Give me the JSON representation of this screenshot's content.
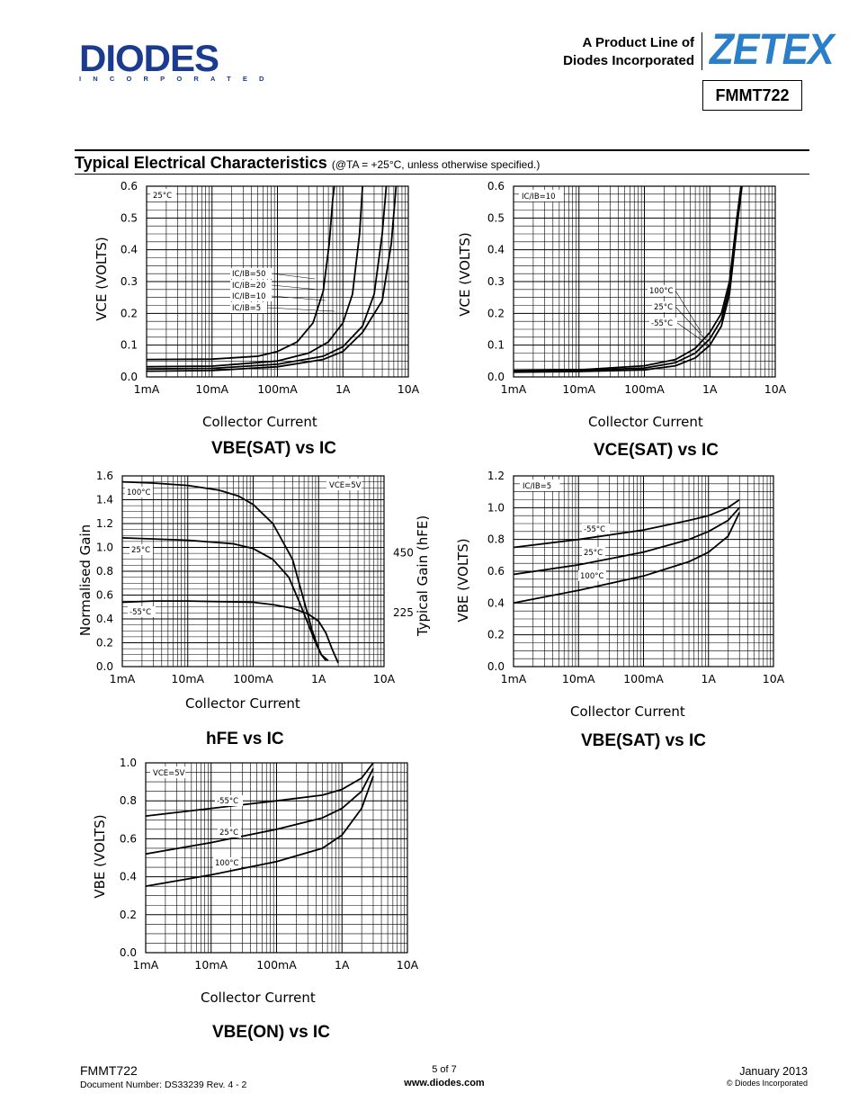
{
  "header": {
    "logo_text": "DIODES",
    "logo_subtext": "INCORPORATED",
    "product_line_1": "A Product Line of",
    "product_line_2": "Diodes Incorporated",
    "brand": "ZETEX",
    "part_number": "FMMT722",
    "brand_color": "#2b7ec8",
    "logo_color": "#1a3b8f"
  },
  "section": {
    "title": "Typical Electrical Characteristics",
    "condition": "(@TA = +25°C, unless otherwise specified.)"
  },
  "chart_data": [
    {
      "type": "line",
      "title": "VBE(SAT) vs IC",
      "xlabel": "Collector Current",
      "ylabel": "VCE (VOLTS)",
      "x_scale": "log",
      "xlim": [
        0.001,
        10
      ],
      "x_ticks": [
        "1mA",
        "10mA",
        "100mA",
        "1A",
        "10A"
      ],
      "ylim": [
        0,
        0.6
      ],
      "y_ticks": [
        "0.0",
        "0.1",
        "0.2",
        "0.3",
        "0.4",
        "0.5",
        "0.6"
      ],
      "annotations": [
        "25°C"
      ],
      "series": [
        {
          "name": "IC/IB=50",
          "x": [
            0.001,
            0.01,
            0.05,
            0.1,
            0.2,
            0.35,
            0.5,
            0.62,
            0.7,
            0.74
          ],
          "y": [
            0.055,
            0.056,
            0.065,
            0.08,
            0.11,
            0.17,
            0.27,
            0.42,
            0.56,
            0.6
          ]
        },
        {
          "name": "IC/IB=20",
          "x": [
            0.001,
            0.01,
            0.1,
            0.3,
            0.6,
            1.0,
            1.4,
            1.8,
            2.0
          ],
          "y": [
            0.032,
            0.034,
            0.05,
            0.075,
            0.11,
            0.17,
            0.26,
            0.45,
            0.6
          ]
        },
        {
          "name": "IC/IB=10",
          "x": [
            0.001,
            0.01,
            0.1,
            0.5,
            1.0,
            2.0,
            3.0,
            4.0,
            4.6
          ],
          "y": [
            0.025,
            0.027,
            0.04,
            0.065,
            0.095,
            0.16,
            0.26,
            0.45,
            0.6
          ]
        },
        {
          "name": "IC/IB=5",
          "x": [
            0.001,
            0.01,
            0.1,
            0.5,
            1.0,
            2.0,
            4.0,
            5.5,
            6.5
          ],
          "y": [
            0.018,
            0.02,
            0.032,
            0.055,
            0.08,
            0.14,
            0.24,
            0.42,
            0.6
          ]
        }
      ]
    },
    {
      "type": "line",
      "title": "VCE(SAT) vs IC",
      "xlabel": "Collector Current",
      "ylabel": "VCE (VOLTS)",
      "x_scale": "log",
      "xlim": [
        0.001,
        10
      ],
      "x_ticks": [
        "1mA",
        "10mA",
        "100mA",
        "1A",
        "10A"
      ],
      "ylim": [
        0,
        0.6
      ],
      "y_ticks": [
        "0.0",
        "0.1",
        "0.2",
        "0.3",
        "0.4",
        "0.5",
        "0.6"
      ],
      "annotations": [
        "IC/IB=10"
      ],
      "series": [
        {
          "name": "100°C",
          "x": [
            0.001,
            0.01,
            0.1,
            0.3,
            0.6,
            1.0,
            1.5,
            2.0,
            2.6,
            3.0
          ],
          "y": [
            0.02,
            0.022,
            0.035,
            0.055,
            0.09,
            0.14,
            0.2,
            0.3,
            0.5,
            0.6
          ]
        },
        {
          "name": "25°C",
          "x": [
            0.001,
            0.01,
            0.1,
            0.3,
            0.6,
            1.0,
            1.5,
            2.0,
            2.6,
            3.0
          ],
          "y": [
            0.018,
            0.02,
            0.028,
            0.045,
            0.075,
            0.12,
            0.18,
            0.28,
            0.5,
            0.6
          ]
        },
        {
          "name": "-55°C",
          "x": [
            0.001,
            0.01,
            0.1,
            0.3,
            0.6,
            1.0,
            1.5,
            2.0,
            2.7,
            3.1
          ],
          "y": [
            0.015,
            0.017,
            0.022,
            0.035,
            0.06,
            0.1,
            0.16,
            0.26,
            0.5,
            0.6
          ]
        }
      ]
    },
    {
      "type": "line",
      "title": "hFE vs IC",
      "xlabel": "Collector Current",
      "ylabel": "Normalised Gain",
      "y2label": "Typical Gain (hFE)",
      "x_scale": "log",
      "xlim": [
        0.001,
        10
      ],
      "x_ticks": [
        "1mA",
        "10mA",
        "100mA",
        "1A",
        "10A"
      ],
      "ylim": [
        0,
        1.6
      ],
      "y_ticks": [
        "0.0",
        "0.2",
        "0.4",
        "0.6",
        "0.8",
        "1.0",
        "1.2",
        "1.4",
        "1.6"
      ],
      "y2_ticks": [
        "450",
        "225"
      ],
      "annotations": [
        "VCE=5V"
      ],
      "series": [
        {
          "name": "100°C",
          "x": [
            0.001,
            0.003,
            0.01,
            0.03,
            0.06,
            0.1,
            0.2,
            0.4,
            0.6,
            0.8,
            1.0,
            1.1,
            1.3
          ],
          "y": [
            1.55,
            1.54,
            1.52,
            1.48,
            1.43,
            1.36,
            1.2,
            0.9,
            0.55,
            0.3,
            0.15,
            0.1,
            0.05
          ]
        },
        {
          "name": "25°C",
          "x": [
            0.001,
            0.01,
            0.05,
            0.1,
            0.2,
            0.35,
            0.5,
            0.7,
            0.9,
            1.1,
            1.4
          ],
          "y": [
            1.08,
            1.06,
            1.03,
            0.99,
            0.9,
            0.75,
            0.55,
            0.35,
            0.2,
            0.1,
            0.05
          ]
        },
        {
          "name": "-55°C",
          "x": [
            0.001,
            0.003,
            0.01,
            0.1,
            0.2,
            0.4,
            0.7,
            1.0,
            1.3,
            1.6,
            2.0
          ],
          "y": [
            0.54,
            0.55,
            0.55,
            0.54,
            0.52,
            0.49,
            0.44,
            0.38,
            0.28,
            0.15,
            0.03
          ]
        }
      ]
    },
    {
      "type": "line",
      "title": "VBE(SAT) vs IC",
      "xlabel": "Collector Current",
      "ylabel": "VBE (VOLTS)",
      "x_scale": "log",
      "xlim": [
        0.001,
        10
      ],
      "x_ticks": [
        "1mA",
        "10mA",
        "100mA",
        "1A",
        "10A"
      ],
      "ylim": [
        0,
        1.2
      ],
      "y_ticks": [
        "0.0",
        "0.2",
        "0.4",
        "0.6",
        "0.8",
        "1.0",
        "1.2"
      ],
      "annotations": [
        "IC/IB=5"
      ],
      "series": [
        {
          "name": "-55°C",
          "x": [
            0.001,
            0.01,
            0.1,
            0.5,
            1.0,
            2.0,
            3.0
          ],
          "y": [
            0.75,
            0.8,
            0.86,
            0.92,
            0.95,
            1.0,
            1.05
          ]
        },
        {
          "name": "25°C",
          "x": [
            0.001,
            0.01,
            0.1,
            0.5,
            1.0,
            2.0,
            3.0
          ],
          "y": [
            0.58,
            0.64,
            0.72,
            0.8,
            0.85,
            0.92,
            1.0
          ]
        },
        {
          "name": "100°C",
          "x": [
            0.001,
            0.01,
            0.1,
            0.5,
            1.0,
            2.0,
            3.0
          ],
          "y": [
            0.4,
            0.48,
            0.57,
            0.66,
            0.72,
            0.82,
            0.97
          ]
        }
      ]
    },
    {
      "type": "line",
      "title": "VBE(ON) vs IC",
      "xlabel": "Collector Current",
      "ylabel": "VBE (VOLTS)",
      "x_scale": "log",
      "xlim": [
        0.001,
        10
      ],
      "x_ticks": [
        "1mA",
        "10mA",
        "100mA",
        "1A",
        "10A"
      ],
      "ylim": [
        0,
        1.0
      ],
      "y_ticks": [
        "0.0",
        "0.2",
        "0.4",
        "0.6",
        "0.8",
        "1.0"
      ],
      "annotations": [
        "VCE=5V"
      ],
      "series": [
        {
          "name": "-55°C",
          "x": [
            0.001,
            0.01,
            0.1,
            0.5,
            1.0,
            2.0,
            3.0
          ],
          "y": [
            0.72,
            0.76,
            0.8,
            0.83,
            0.86,
            0.92,
            1.0
          ]
        },
        {
          "name": "25°C",
          "x": [
            0.001,
            0.01,
            0.1,
            0.5,
            1.0,
            2.0,
            3.0
          ],
          "y": [
            0.52,
            0.58,
            0.65,
            0.71,
            0.76,
            0.85,
            0.97
          ]
        },
        {
          "name": "100°C",
          "x": [
            0.001,
            0.01,
            0.1,
            0.5,
            1.0,
            2.0,
            3.0
          ],
          "y": [
            0.35,
            0.41,
            0.48,
            0.55,
            0.62,
            0.76,
            0.93
          ]
        }
      ]
    }
  ],
  "footer": {
    "part": "FMMT722",
    "doc_number": "Document Number:  DS33239 Rev. 4 - 2",
    "page": "5 of 7",
    "website": "www.diodes.com",
    "date": "January 2013",
    "copyright": "© Diodes Incorporated"
  }
}
